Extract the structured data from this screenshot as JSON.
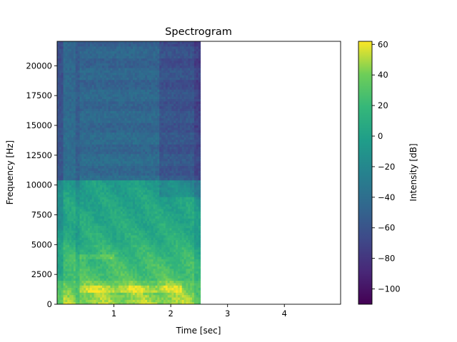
{
  "chart_data": {
    "type": "heatmap",
    "title": "Spectrogram",
    "xlabel": "Time [sec]",
    "ylabel": "Frequency [Hz]",
    "xlim": [
      0,
      4.99
    ],
    "ylim": [
      0,
      22050
    ],
    "data_extent_x": [
      0,
      2.52
    ],
    "xticks": [
      1,
      2,
      3,
      4
    ],
    "xtick_labels": [
      "1",
      "2",
      "3",
      "4"
    ],
    "yticks": [
      0,
      2500,
      5000,
      7500,
      10000,
      12500,
      15000,
      17500,
      20000
    ],
    "ytick_labels": [
      "0",
      "2500",
      "5000",
      "7500",
      "10000",
      "12500",
      "15000",
      "17500",
      "20000"
    ],
    "grid": false,
    "colorbar": {
      "label": "Intensity [dB]",
      "colormap": "viridis",
      "range": [
        -110,
        62
      ],
      "ticks": [
        60,
        40,
        20,
        0,
        -20,
        -40,
        -60,
        -80,
        -100
      ],
      "tick_labels": [
        "60",
        "40",
        "20",
        "0",
        "−20",
        "−40",
        "−60",
        "−80",
        "−100"
      ]
    },
    "intensity_regions": [
      {
        "freq_range": [
          0,
          2000
        ],
        "time_range": [
          0.4,
          2.5
        ],
        "approx_db": 50
      },
      {
        "freq_range": [
          2000,
          5000
        ],
        "time_range": [
          0.1,
          2.4
        ],
        "approx_db": 25
      },
      {
        "freq_range": [
          5000,
          10500
        ],
        "time_range": [
          0.1,
          2.3
        ],
        "approx_db": 5
      },
      {
        "freq_range": [
          10500,
          22050
        ],
        "time_range": [
          0,
          2.52
        ],
        "approx_db": -45
      }
    ]
  }
}
